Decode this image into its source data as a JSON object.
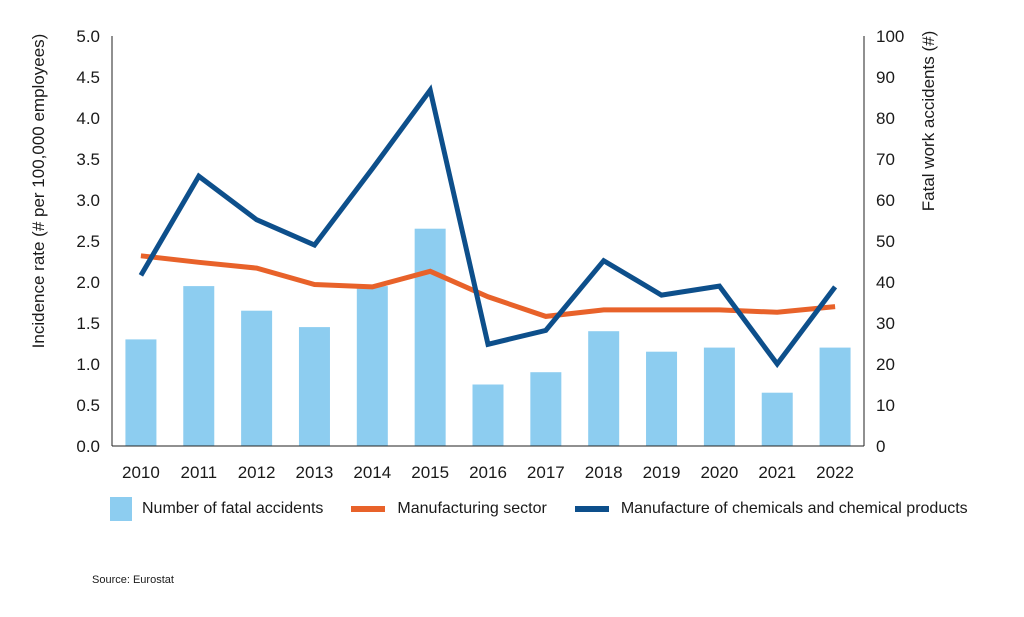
{
  "colors": {
    "bars": "#8dcdf0",
    "manufacturing": "#e8622a",
    "chemicals": "#0d4f8b",
    "axis": "#222222"
  },
  "legend": {
    "bars_label": "Number of fatal accidents",
    "manufacturing_label": "Manufacturing sector",
    "chemicals_label": "Manufacture of chemicals and chemical products"
  },
  "source": "Source: Eurostat",
  "chart_data": {
    "type": "bar",
    "title": "",
    "categories": [
      "2010",
      "2011",
      "2012",
      "2013",
      "2014",
      "2015",
      "2016",
      "2017",
      "2018",
      "2019",
      "2020",
      "2021",
      "2022"
    ],
    "ylabel": "Incidence rate (# per 100,000 employees)",
    "ylabel_right": "Fatal work accidents (#)",
    "ylim": [
      0,
      5.0
    ],
    "ylim_right": [
      0,
      100
    ],
    "yticks": [
      "0.0",
      "0.5",
      "1.0",
      "1.5",
      "2.0",
      "2.5",
      "3.0",
      "3.5",
      "4.0",
      "4.5",
      "5.0"
    ],
    "yticks_right": [
      "0",
      "10",
      "20",
      "30",
      "40",
      "50",
      "60",
      "70",
      "80",
      "90",
      "100"
    ],
    "grid": false,
    "legend_position": "bottom",
    "series": [
      {
        "name": "Number of fatal accidents",
        "type": "bar",
        "axis": "right",
        "values": [
          26,
          39,
          33,
          29,
          39,
          53,
          15,
          18,
          28,
          23,
          24,
          13,
          24
        ]
      },
      {
        "name": "Manufacturing sector",
        "type": "line",
        "axis": "left",
        "values": [
          2.32,
          2.24,
          2.17,
          1.97,
          1.94,
          2.13,
          1.82,
          1.58,
          1.66,
          1.66,
          1.66,
          1.63,
          1.7
        ]
      },
      {
        "name": "Manufacture of chemicals and chemical products",
        "type": "line",
        "axis": "left",
        "values": [
          2.08,
          3.29,
          2.76,
          2.45,
          3.38,
          4.34,
          1.24,
          1.41,
          2.26,
          1.84,
          1.95,
          1.0,
          1.94
        ]
      }
    ]
  }
}
